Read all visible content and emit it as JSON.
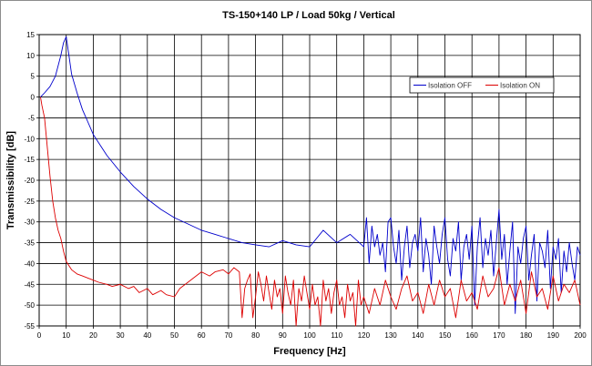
{
  "chart_data": {
    "type": "line",
    "title": "TS-150+140 LP / Load 50kg / Vertical",
    "xlabel": "Frequency [Hz]",
    "ylabel": "Transmissibility [dB]",
    "xlim": [
      0,
      200
    ],
    "ylim": [
      -55,
      15
    ],
    "x_ticks": [
      0,
      10,
      20,
      30,
      40,
      50,
      60,
      70,
      80,
      90,
      100,
      110,
      120,
      130,
      140,
      150,
      160,
      170,
      180,
      190,
      200
    ],
    "x_tick_labels": [
      "0",
      "10",
      "20",
      "30",
      "40",
      "50",
      "60",
      "70",
      "80",
      "90",
      "100",
      "110",
      "120",
      "130",
      "140",
      "150",
      "160",
      "170",
      "180",
      "190",
      "200"
    ],
    "y_ticks": [
      15,
      10,
      5,
      0,
      -5,
      -10,
      -15,
      -20,
      -25,
      -30,
      -35,
      -40,
      -45,
      -50,
      -55
    ],
    "y_tick_labels": [
      "15",
      "10",
      "5",
      "0",
      "-5",
      "-10",
      "-15",
      "-20",
      "-25",
      "-30",
      "-35",
      "-40",
      "-45",
      "-50",
      "-55"
    ],
    "grid": true,
    "legend_position": "top-right",
    "series": [
      {
        "name": "Isolation OFF",
        "color": "#0000cc",
        "x": [
          0.5,
          2,
          4,
          6,
          8,
          9,
          10,
          11,
          12,
          14,
          16,
          18,
          20,
          25,
          30,
          35,
          40,
          45,
          50,
          55,
          60,
          65,
          70,
          75,
          80,
          85,
          90,
          95,
          100,
          105,
          110,
          115,
          120,
          121,
          122,
          123,
          124,
          125,
          126,
          127,
          128,
          129,
          130,
          131,
          132,
          133,
          134,
          135,
          136,
          137,
          138,
          139,
          140,
          141,
          142,
          143,
          144,
          145,
          146,
          147,
          148,
          149,
          150,
          151,
          152,
          153,
          154,
          155,
          156,
          157,
          158,
          159,
          160,
          161,
          162,
          163,
          164,
          165,
          166,
          167,
          168,
          169,
          170,
          171,
          172,
          173,
          174,
          175,
          176,
          177,
          178,
          179,
          180,
          181,
          182,
          183,
          184,
          185,
          186,
          187,
          188,
          189,
          190,
          191,
          192,
          193,
          194,
          195,
          196,
          197,
          198,
          199,
          200
        ],
        "values": [
          0,
          1,
          2.5,
          5,
          10,
          13,
          14.5,
          10,
          5.5,
          1,
          -3,
          -6,
          -9,
          -14,
          -18,
          -21.5,
          -24.5,
          -27,
          -29,
          -30.5,
          -32,
          -33,
          -34,
          -35,
          -35.5,
          -36,
          -34.5,
          -35.5,
          -36,
          -32,
          -35,
          -33,
          -36,
          -29,
          -40,
          -31,
          -36,
          -33,
          -38,
          -35,
          -42,
          -30,
          -29,
          -36,
          -40,
          -32,
          -44,
          -36,
          -31,
          -41,
          -35,
          -33,
          -37,
          -29,
          -42,
          -34,
          -38,
          -45,
          -31,
          -36,
          -40,
          -33,
          -29,
          -39,
          -43,
          -34,
          -37,
          -30,
          -44,
          -36,
          -33,
          -39,
          -31,
          -50,
          -36,
          -29,
          -41,
          -34,
          -38,
          -32,
          -43,
          -35,
          -27,
          -39,
          -33,
          -45,
          -37,
          -30,
          -52,
          -36,
          -40,
          -34,
          -31,
          -44,
          -38,
          -33,
          -49,
          -35,
          -37,
          -41,
          -32,
          -46,
          -36,
          -39,
          -34,
          -47,
          -37,
          -42,
          -35,
          -40,
          -44,
          -36,
          -38
        ]
      },
      {
        "name": "Isolation ON",
        "color": "#dd0000",
        "x": [
          0.5,
          1,
          2,
          3,
          4,
          5,
          6,
          7,
          8,
          9,
          10,
          12,
          14,
          16,
          18,
          20,
          22,
          25,
          27,
          30,
          33,
          35,
          37,
          40,
          42,
          45,
          47,
          50,
          52,
          55,
          58,
          60,
          63,
          65,
          68,
          70,
          72,
          74,
          75,
          76,
          77,
          78,
          79,
          80,
          81,
          82,
          83,
          84,
          85,
          86,
          87,
          88,
          89,
          90,
          91,
          92,
          93,
          94,
          95,
          96,
          97,
          98,
          99,
          100,
          101,
          102,
          103,
          104,
          105,
          106,
          107,
          108,
          109,
          110,
          111,
          112,
          113,
          114,
          115,
          116,
          117,
          118,
          119,
          120,
          122,
          124,
          126,
          128,
          130,
          132,
          134,
          136,
          138,
          140,
          142,
          144,
          146,
          148,
          150,
          152,
          154,
          156,
          158,
          160,
          162,
          164,
          166,
          168,
          170,
          172,
          174,
          176,
          178,
          180,
          182,
          184,
          186,
          188,
          190,
          192,
          194,
          196,
          198,
          200
        ],
        "values": [
          0,
          -2,
          -5,
          -12,
          -19,
          -25,
          -29,
          -32,
          -34,
          -37,
          -39.5,
          -41.5,
          -42.5,
          -43,
          -43.5,
          -44,
          -44.5,
          -45,
          -45.5,
          -45,
          -46,
          -45.5,
          -47,
          -46,
          -47.5,
          -46.5,
          -47.5,
          -48,
          -46,
          -44.5,
          -43,
          -42,
          -43,
          -42,
          -41.5,
          -42.5,
          -41,
          -42,
          -53,
          -46,
          -44,
          -42.5,
          -53,
          -48,
          -42,
          -45,
          -49,
          -43,
          -47,
          -51,
          -44,
          -48,
          -46,
          -52,
          -43,
          -47,
          -50,
          -44,
          -55,
          -46,
          -49,
          -43,
          -47,
          -51,
          -45,
          -50,
          -48,
          -55,
          -44,
          -49,
          -46,
          -52,
          -47,
          -44,
          -50,
          -48,
          -53,
          -45,
          -49,
          -47,
          -55,
          -44,
          -50,
          -48,
          -52,
          -46,
          -50,
          -44,
          -48,
          -51,
          -46,
          -43,
          -49,
          -47,
          -52,
          -45,
          -50,
          -44,
          -48,
          -46,
          -53,
          -44,
          -49,
          -47,
          -51,
          -43,
          -48,
          -46,
          -41,
          -50,
          -45,
          -49,
          -44,
          -52,
          -42,
          -48,
          -46,
          -51,
          -43,
          -49,
          -45,
          -47,
          -44,
          -50
        ]
      }
    ]
  }
}
